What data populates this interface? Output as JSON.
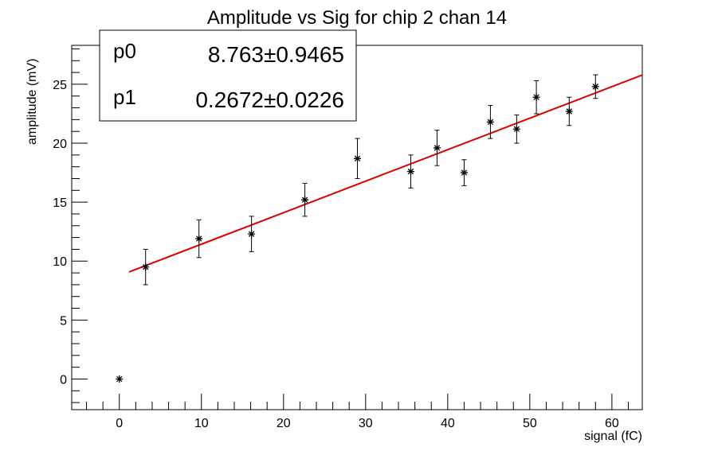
{
  "chart_data": {
    "type": "scatter",
    "title": "Amplitude vs Sig for chip 2 chan 14",
    "xlabel": "signal (fC)",
    "ylabel": "amplitude (mV)",
    "xlim": [
      -5.8,
      63.7
    ],
    "ylim": [
      -2.6,
      28.3
    ],
    "xticks": [
      0,
      10,
      20,
      30,
      40,
      50,
      60
    ],
    "yticks": [
      0,
      5,
      10,
      15,
      20,
      25
    ],
    "grid": false,
    "series": [
      {
        "marker": "star",
        "color": "#000000",
        "points": [
          {
            "x": 0.0,
            "y": 0.0,
            "err": 0.0
          },
          {
            "x": 3.2,
            "y": 9.5,
            "err": 1.5
          },
          {
            "x": 9.7,
            "y": 11.9,
            "err": 1.6
          },
          {
            "x": 16.1,
            "y": 12.3,
            "err": 1.5
          },
          {
            "x": 22.6,
            "y": 15.2,
            "err": 1.4
          },
          {
            "x": 29.0,
            "y": 18.7,
            "err": 1.7
          },
          {
            "x": 35.5,
            "y": 17.6,
            "err": 1.4
          },
          {
            "x": 38.7,
            "y": 19.6,
            "err": 1.5
          },
          {
            "x": 42.0,
            "y": 17.5,
            "err": 1.1
          },
          {
            "x": 45.2,
            "y": 21.8,
            "err": 1.4
          },
          {
            "x": 48.4,
            "y": 21.2,
            "err": 1.2
          },
          {
            "x": 50.8,
            "y": 23.9,
            "err": 1.4
          },
          {
            "x": 54.8,
            "y": 22.7,
            "err": 1.2
          },
          {
            "x": 58.0,
            "y": 24.8,
            "err": 1.0
          }
        ]
      }
    ],
    "fit": {
      "function": "pol1",
      "color": "#dd0000",
      "x_range": [
        1.2,
        63.7
      ],
      "p0": 8.763,
      "p1": 0.2672
    },
    "stats_box": {
      "position": "top-left",
      "rows": [
        {
          "name": "p0",
          "value": "8.763",
          "pm": "±",
          "error": "0.9465"
        },
        {
          "name": "p1",
          "value": "0.2672",
          "pm": "±",
          "error": "0.0226"
        }
      ]
    }
  }
}
